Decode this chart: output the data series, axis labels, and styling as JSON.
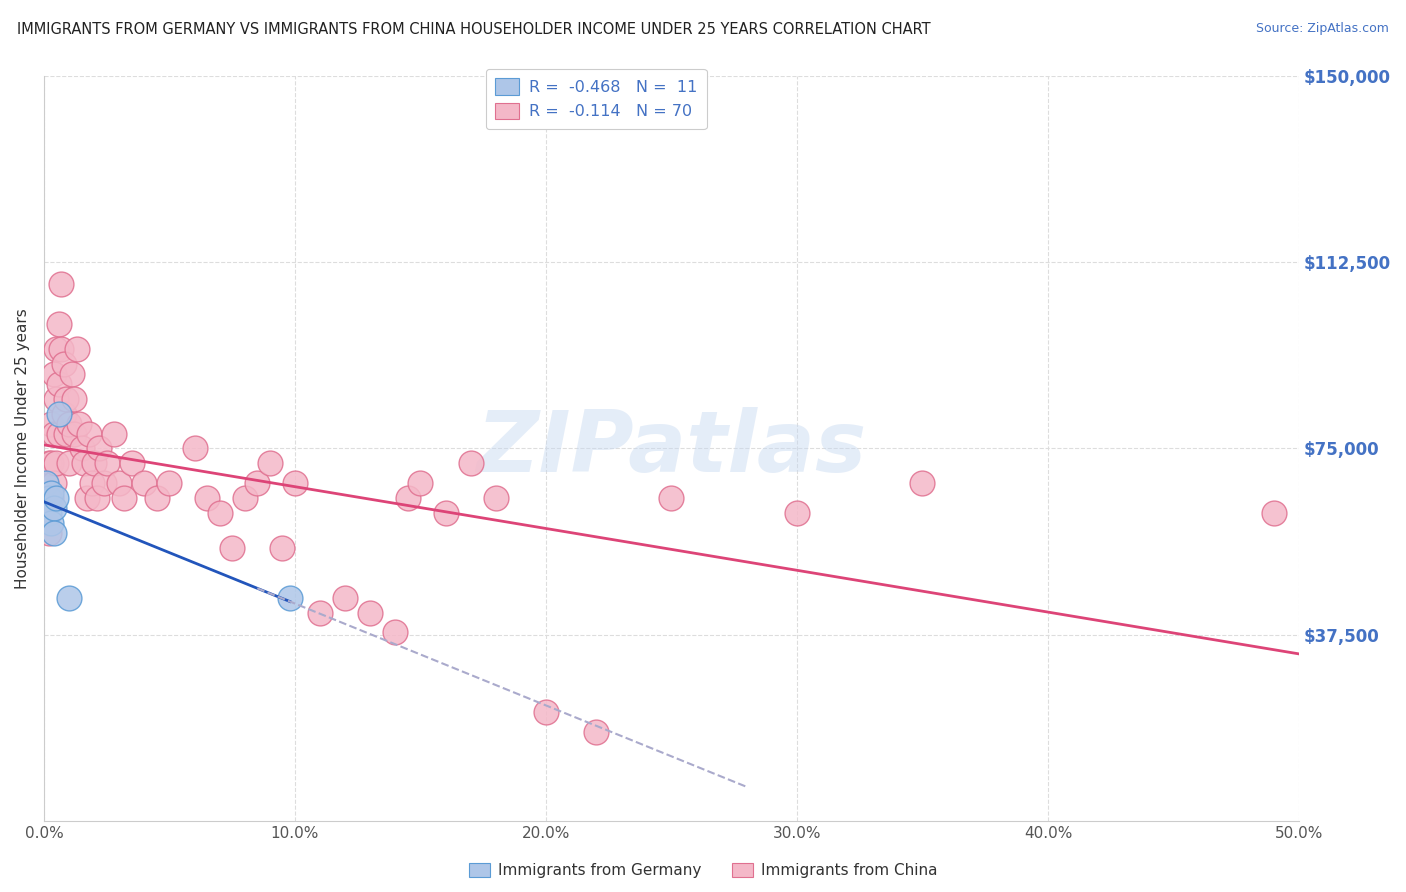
{
  "title": "IMMIGRANTS FROM GERMANY VS IMMIGRANTS FROM CHINA HOUSEHOLDER INCOME UNDER 25 YEARS CORRELATION CHART",
  "source": "Source: ZipAtlas.com",
  "ylabel": "Householder Income Under 25 years",
  "xlim": [
    0.0,
    0.5
  ],
  "ylim": [
    0,
    150000
  ],
  "xticks": [
    0.0,
    0.1,
    0.2,
    0.3,
    0.4,
    0.5
  ],
  "xticklabels": [
    "0.0%",
    "10.0%",
    "20.0%",
    "30.0%",
    "40.0%",
    "50.0%"
  ],
  "yticks": [
    37500,
    75000,
    112500,
    150000
  ],
  "yticklabels": [
    "$37,500",
    "$75,000",
    "$112,500",
    "$150,000"
  ],
  "ytick_color": "#4472c4",
  "germany_color": "#aec6e8",
  "china_color": "#f4b8c8",
  "germany_edge": "#5b9bd5",
  "china_edge": "#e07090",
  "trend_germany_color": "#2255bb",
  "trend_china_color": "#dd4477",
  "dashed_color": "#aaaacc",
  "legend_R_germany": "-0.468",
  "legend_N_germany": "11",
  "legend_R_china": "-0.114",
  "legend_N_china": "70",
  "watermark": "ZIPatlas",
  "germany_x": [
    0.001,
    0.002,
    0.002,
    0.003,
    0.003,
    0.004,
    0.004,
    0.005,
    0.006,
    0.01,
    0.098
  ],
  "germany_y": [
    68000,
    65000,
    62000,
    66000,
    60000,
    63000,
    58000,
    65000,
    82000,
    45000,
    45000
  ],
  "china_x": [
    0.001,
    0.001,
    0.002,
    0.002,
    0.003,
    0.003,
    0.003,
    0.004,
    0.004,
    0.004,
    0.005,
    0.005,
    0.005,
    0.006,
    0.006,
    0.006,
    0.007,
    0.007,
    0.008,
    0.008,
    0.009,
    0.009,
    0.01,
    0.01,
    0.011,
    0.012,
    0.012,
    0.013,
    0.014,
    0.015,
    0.016,
    0.017,
    0.018,
    0.019,
    0.02,
    0.021,
    0.022,
    0.024,
    0.025,
    0.028,
    0.03,
    0.032,
    0.035,
    0.04,
    0.045,
    0.05,
    0.06,
    0.065,
    0.07,
    0.075,
    0.08,
    0.085,
    0.09,
    0.095,
    0.1,
    0.11,
    0.12,
    0.13,
    0.14,
    0.145,
    0.15,
    0.16,
    0.17,
    0.18,
    0.2,
    0.22,
    0.25,
    0.3,
    0.35,
    0.49
  ],
  "china_y": [
    68000,
    60000,
    72000,
    58000,
    80000,
    72000,
    65000,
    90000,
    78000,
    68000,
    95000,
    85000,
    72000,
    100000,
    88000,
    78000,
    108000,
    95000,
    92000,
    82000,
    85000,
    78000,
    80000,
    72000,
    90000,
    85000,
    78000,
    95000,
    80000,
    75000,
    72000,
    65000,
    78000,
    68000,
    72000,
    65000,
    75000,
    68000,
    72000,
    78000,
    68000,
    65000,
    72000,
    68000,
    65000,
    68000,
    75000,
    65000,
    62000,
    55000,
    65000,
    68000,
    72000,
    55000,
    68000,
    42000,
    45000,
    42000,
    38000,
    65000,
    68000,
    62000,
    72000,
    65000,
    22000,
    18000,
    65000,
    62000,
    68000,
    62000
  ],
  "background_color": "#ffffff",
  "grid_color": "#dddddd"
}
